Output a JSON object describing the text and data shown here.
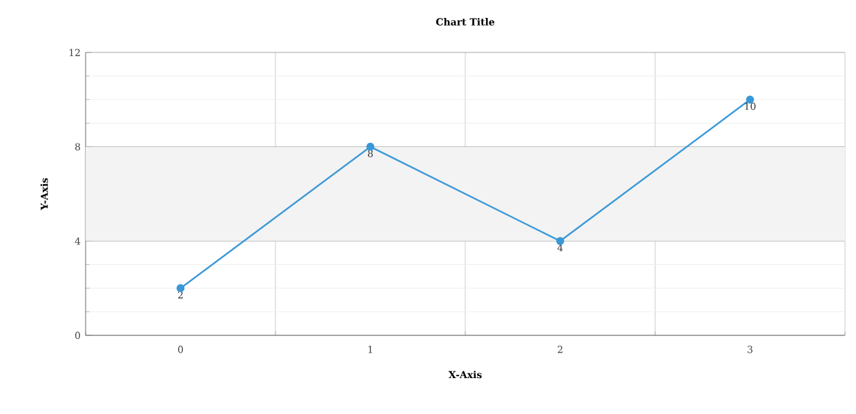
{
  "chart_data": {
    "type": "line",
    "title": "Chart Title",
    "xlabel": "X-Axis",
    "ylabel": "Y-Axis",
    "categories": [
      "0",
      "1",
      "2",
      "3"
    ],
    "series": [
      {
        "color": "#3a98d8",
        "values": [
          2,
          8,
          4,
          10
        ]
      }
    ],
    "ylim": [
      0,
      12
    ],
    "yticks": [
      0,
      4,
      8,
      12
    ],
    "grid": true,
    "marker": "circle",
    "line_style": "solid",
    "data_labels": true,
    "bands": [
      {
        "axis": "y",
        "from": 4,
        "to": 8,
        "color": "#f3f3f3"
      }
    ]
  }
}
